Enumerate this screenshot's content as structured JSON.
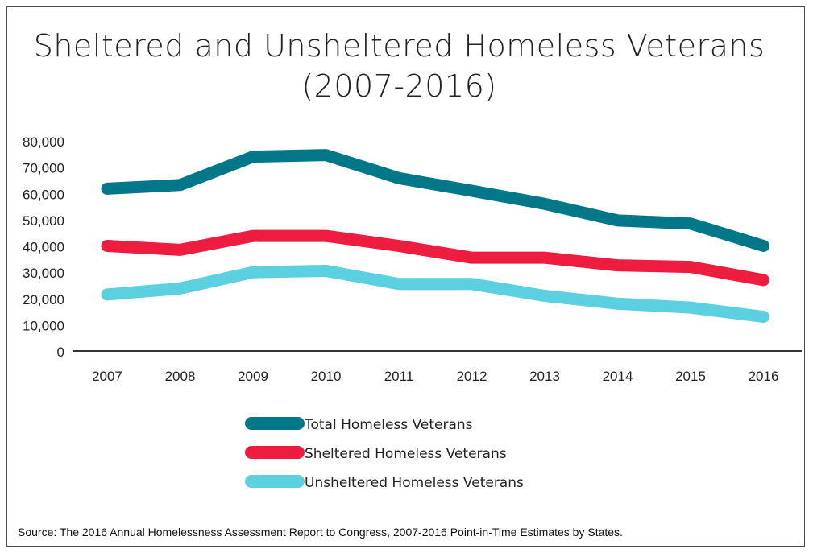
{
  "chart_data": {
    "type": "line",
    "title": "Sheltered and Unsheltered Homeless Veterans",
    "subtitle": "(2007-2016)",
    "x": [
      "2007",
      "2008",
      "2009",
      "2010",
      "2011",
      "2012",
      "2013",
      "2014",
      "2015",
      "2016"
    ],
    "yticks": [
      "0",
      "10,000",
      "20,000",
      "30,000",
      "40,000",
      "50,000",
      "60,000",
      "70,000",
      "80,000"
    ],
    "ylim": [
      0,
      80000
    ],
    "grid": false,
    "legend_position": "bottom-center",
    "series": [
      {
        "name": "Total Homeless Veterans",
        "color": "#00788a",
        "values": [
          61800,
          63200,
          74000,
          74600,
          65800,
          61000,
          56000,
          49700,
          48500,
          40000
        ]
      },
      {
        "name": "Sheltered Homeless Veterans",
        "color": "#ee1c3e",
        "values": [
          40000,
          38500,
          43800,
          43800,
          40000,
          35500,
          35500,
          32600,
          32000,
          27000
        ]
      },
      {
        "name": "Unsheltered Homeless Veterans",
        "color": "#5ad0e0",
        "values": [
          21500,
          23800,
          30000,
          30500,
          25500,
          25500,
          21000,
          18000,
          16500,
          13000
        ]
      }
    ],
    "source": "Source: The 2016 Annual Homelessness Assessment Report to Congress, 2007-2016 Point-in-Time Estimates by States."
  }
}
